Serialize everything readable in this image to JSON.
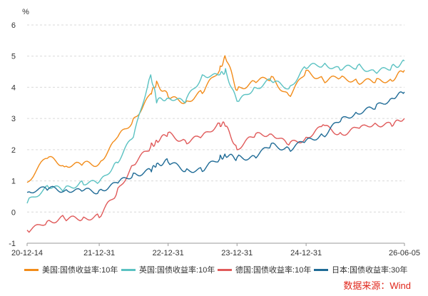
{
  "chart_data": {
    "type": "line",
    "unit_label": "%",
    "y_ticks": [
      -1,
      0,
      1,
      2,
      3,
      4,
      5,
      6
    ],
    "ylim": [
      -1,
      6
    ],
    "x_ticks": [
      "20-12-14",
      "21-12-31",
      "22-12-31",
      "23-12-31",
      "24-12-31",
      "26-06-05"
    ],
    "x": [
      "2020-12-14",
      "2021-03-31",
      "2021-06-30",
      "2021-09-30",
      "2021-12-31",
      "2022-03-31",
      "2022-06-30",
      "2022-09-30",
      "2022-10-31",
      "2022-12-31",
      "2023-03-31",
      "2023-06-30",
      "2023-09-30",
      "2023-10-31",
      "2023-12-31",
      "2024-03-31",
      "2024-06-30",
      "2024-09-30",
      "2024-12-31",
      "2025-03-31",
      "2025-06-30",
      "2025-09-30",
      "2025-12-31",
      "2026-03-31",
      "2026-06-05"
    ],
    "series": [
      {
        "name": "美国:国债收益率:10年",
        "color": "#f28c1a",
        "values": [
          0.95,
          1.72,
          1.45,
          1.5,
          1.55,
          2.35,
          3.0,
          3.8,
          4.2,
          3.7,
          3.5,
          3.8,
          4.55,
          4.95,
          3.9,
          4.2,
          4.35,
          3.75,
          4.55,
          4.25,
          4.3,
          4.15,
          4.15,
          4.2,
          4.55
        ]
      },
      {
        "name": "英国:国债收益率:10年",
        "color": "#5bc2c2",
        "values": [
          0.28,
          0.85,
          0.75,
          1.0,
          0.97,
          1.6,
          2.4,
          4.4,
          3.5,
          3.65,
          3.5,
          4.4,
          4.4,
          4.6,
          3.55,
          4.0,
          4.2,
          3.95,
          4.6,
          4.7,
          4.55,
          4.7,
          4.5,
          4.7,
          4.85
        ]
      },
      {
        "name": "德国:国债收益率:10年",
        "color": "#e05a5a",
        "values": [
          -0.58,
          -0.29,
          -0.2,
          -0.25,
          -0.18,
          0.55,
          1.5,
          2.1,
          2.3,
          2.55,
          2.3,
          2.45,
          2.85,
          2.75,
          2.0,
          2.4,
          2.5,
          2.15,
          2.4,
          2.8,
          2.55,
          2.7,
          2.85,
          2.75,
          3.0
        ]
      },
      {
        "name": "日本:国债收益率:30年",
        "color": "#1f6b96",
        "values": [
          0.63,
          0.7,
          0.68,
          0.67,
          0.7,
          0.95,
          1.25,
          1.35,
          1.55,
          1.6,
          1.3,
          1.3,
          1.7,
          1.8,
          1.75,
          1.8,
          2.2,
          2.05,
          2.3,
          2.45,
          2.9,
          3.15,
          3.3,
          3.65,
          3.85
        ]
      }
    ]
  },
  "source": "数据来源：Wind"
}
